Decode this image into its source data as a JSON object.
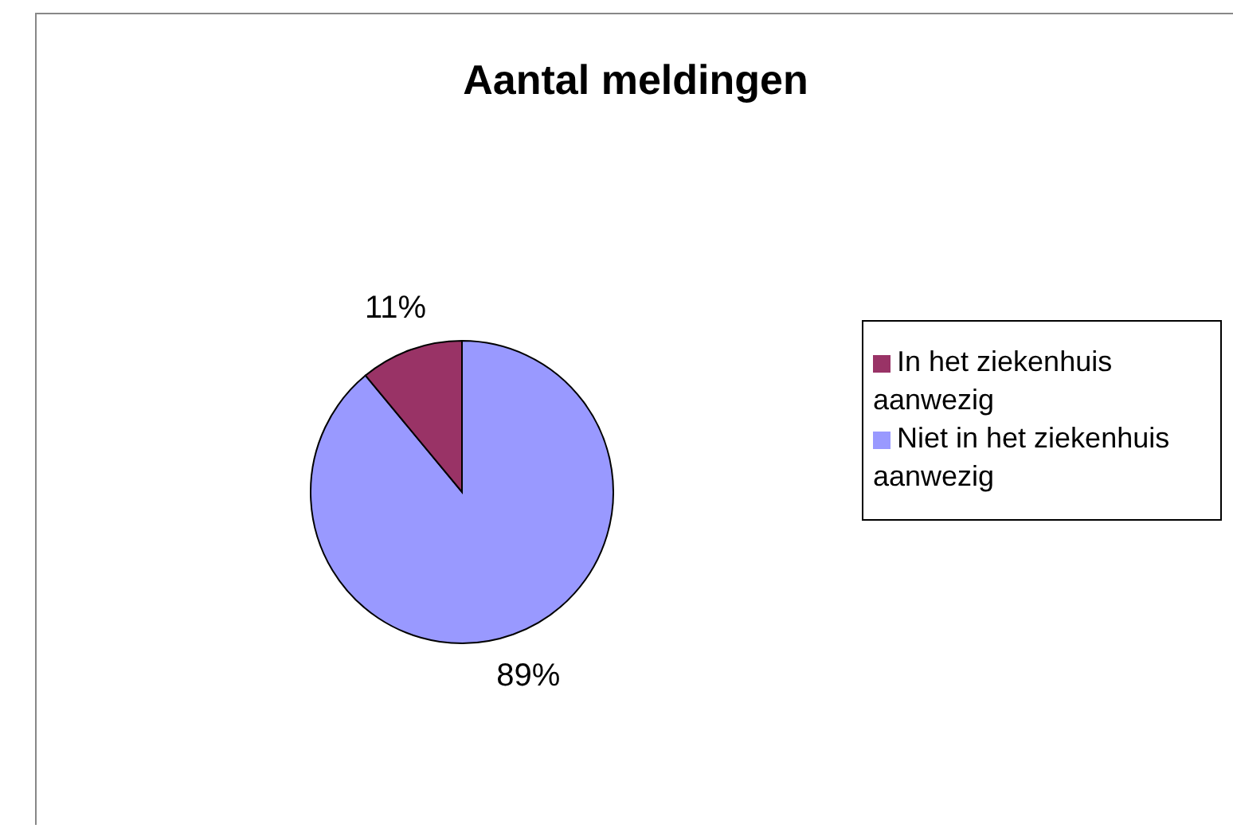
{
  "chart_data": {
    "type": "pie",
    "title": "Aantal meldingen",
    "categories": [
      "Niet in het ziekenhuis aanwezig",
      "In het ziekenhuis aanwezig"
    ],
    "values": [
      89,
      11
    ],
    "colors": [
      "#9999ff",
      "#993366"
    ],
    "value_labels": [
      "89%",
      "11%"
    ],
    "legend": "right"
  }
}
